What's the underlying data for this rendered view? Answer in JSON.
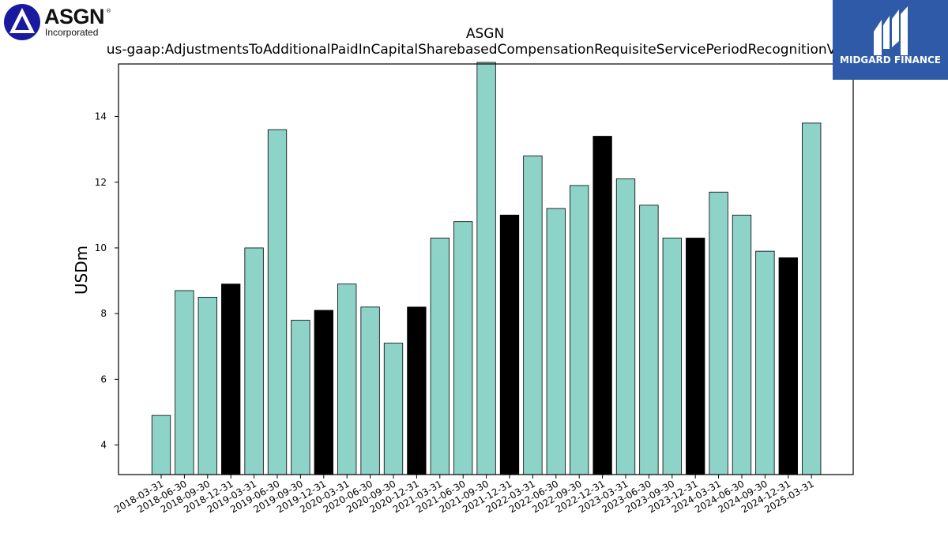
{
  "logo": {
    "name": "ASGN",
    "subtitle": "Incorporated"
  },
  "watermark": {
    "text": "MIDGARD FINANCE"
  },
  "chart_data": {
    "type": "bar",
    "title": "ASGN",
    "subtitle": "us-gaap:AdjustmentsToAdditionalPaidInCapitalSharebasedCompensationRequisiteServicePeriodRecognitionValue",
    "xlabel": "",
    "ylabel": "USDm",
    "ylim": [
      3.1,
      15.6
    ],
    "yticks": [
      4,
      6,
      8,
      10,
      12,
      14
    ],
    "grid": false,
    "legend": "none",
    "colors": {
      "default": "#8dd3c7",
      "q4": "#000000",
      "edge": "#000000"
    },
    "categories": [
      "2018-03-31",
      "2018-06-30",
      "2018-09-30",
      "2018-12-31",
      "2019-03-31",
      "2019-06-30",
      "2019-09-30",
      "2019-12-31",
      "2020-03-31",
      "2020-06-30",
      "2020-09-30",
      "2020-12-31",
      "2021-03-31",
      "2021-06-30",
      "2021-09-30",
      "2021-12-31",
      "2022-03-31",
      "2022-06-30",
      "2022-09-30",
      "2022-12-31",
      "2023-03-31",
      "2023-06-30",
      "2023-09-30",
      "2023-12-31",
      "2024-03-31",
      "2024-06-30",
      "2024-09-30",
      "2024-12-31",
      "2025-03-31"
    ],
    "values": [
      4.9,
      8.7,
      8.5,
      8.9,
      10.0,
      13.6,
      7.8,
      8.1,
      8.9,
      8.2,
      7.1,
      8.2,
      10.3,
      10.8,
      15.7,
      11.0,
      12.8,
      11.2,
      11.9,
      13.4,
      12.1,
      11.3,
      10.3,
      10.3,
      11.7,
      11.0,
      9.9,
      9.7,
      13.8
    ]
  }
}
